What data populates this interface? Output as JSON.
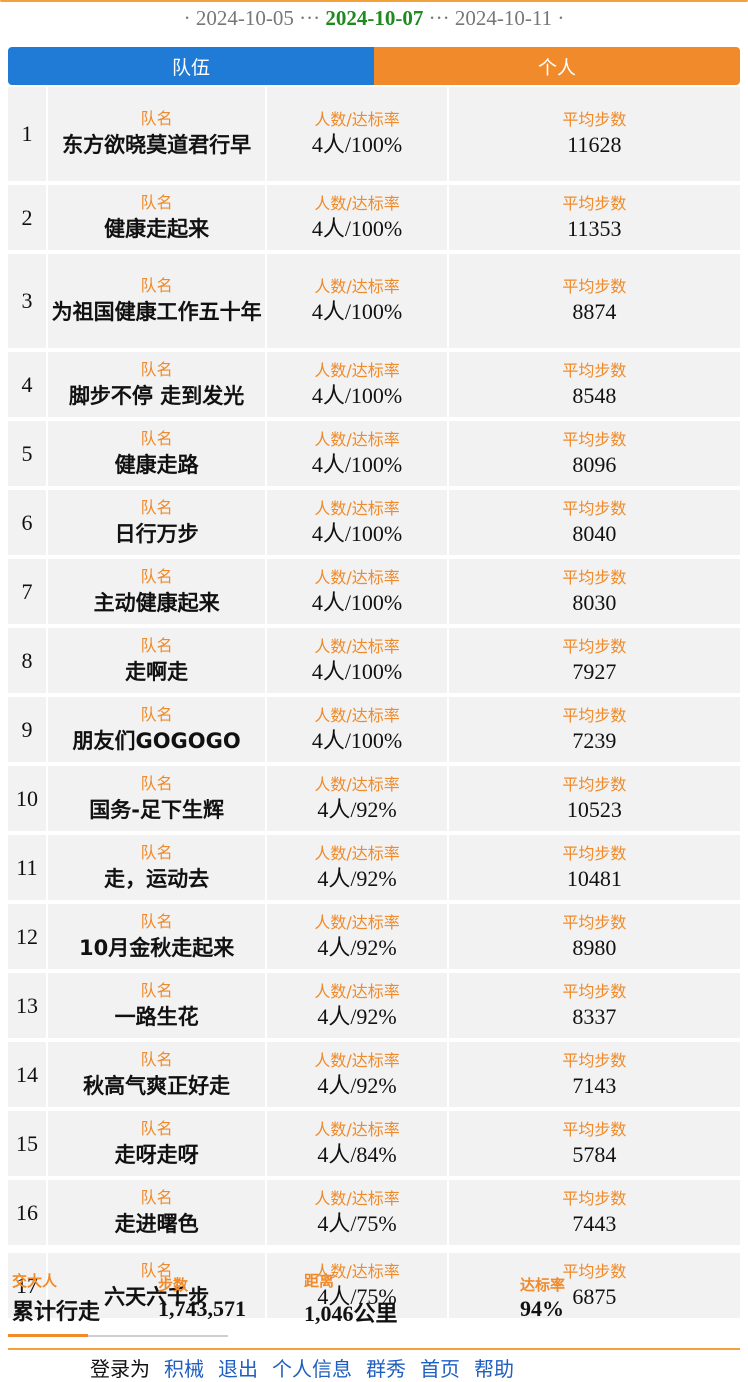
{
  "dates": {
    "prev": "2024-10-05",
    "current": "2024-10-07",
    "next": "2024-10-11"
  },
  "tabs": {
    "team": "队伍",
    "person": "个人"
  },
  "labels": {
    "team_name": "队名",
    "rate": "人数/达标率",
    "avg_steps": "平均步数"
  },
  "rows": [
    {
      "rank": "1",
      "name": "东方欲晓莫道君行早",
      "rate": "4人/100%",
      "steps": "11628"
    },
    {
      "rank": "2",
      "name": "健康走起来",
      "rate": "4人/100%",
      "steps": "11353"
    },
    {
      "rank": "3",
      "name": "为祖国健康工作五十年",
      "rate": "4人/100%",
      "steps": "8874"
    },
    {
      "rank": "4",
      "name": "脚步不停 走到发光",
      "rate": "4人/100%",
      "steps": "8548"
    },
    {
      "rank": "5",
      "name": "健康走路",
      "rate": "4人/100%",
      "steps": "8096"
    },
    {
      "rank": "6",
      "name": "日行万步",
      "rate": "4人/100%",
      "steps": "8040"
    },
    {
      "rank": "7",
      "name": "主动健康起来",
      "rate": "4人/100%",
      "steps": "8030"
    },
    {
      "rank": "8",
      "name": "走啊走",
      "rate": "4人/100%",
      "steps": "7927"
    },
    {
      "rank": "9",
      "name": "朋友们GOGOGO",
      "rate": "4人/100%",
      "steps": "7239"
    },
    {
      "rank": "10",
      "name": "国务-足下生辉",
      "rate": "4人/92%",
      "steps": "10523"
    },
    {
      "rank": "11",
      "name": "走，运动去",
      "rate": "4人/92%",
      "steps": "10481"
    },
    {
      "rank": "12",
      "name": "10月金秋走起来",
      "rate": "4人/92%",
      "steps": "8980"
    },
    {
      "rank": "13",
      "name": "一路生花",
      "rate": "4人/92%",
      "steps": "8337"
    },
    {
      "rank": "14",
      "name": "秋高气爽正好走",
      "rate": "4人/92%",
      "steps": "7143"
    },
    {
      "rank": "15",
      "name": "走呀走呀",
      "rate": "4人/84%",
      "steps": "5784"
    },
    {
      "rank": "16",
      "name": "走进曙色",
      "rate": "4人/75%",
      "steps": "7443"
    },
    {
      "rank": "17",
      "name": "六天六千步",
      "rate": "4人/75%",
      "steps": "6875"
    }
  ],
  "summary": {
    "org_label": "交大人",
    "title": "累计行走",
    "steps_label": "步数",
    "steps_value": "1,743,571",
    "distance_label": "距离",
    "distance_value": "1,046公里",
    "rate_label": "达标率",
    "rate_value": "94%"
  },
  "footer": [
    "登录为",
    "积械",
    "退出",
    "个人信息",
    "群秀",
    "首页",
    "帮助"
  ],
  "colors": {
    "team_tab": "#1f7bd6",
    "person_tab": "#f08a2a",
    "active_date": "#1f8a1f"
  }
}
